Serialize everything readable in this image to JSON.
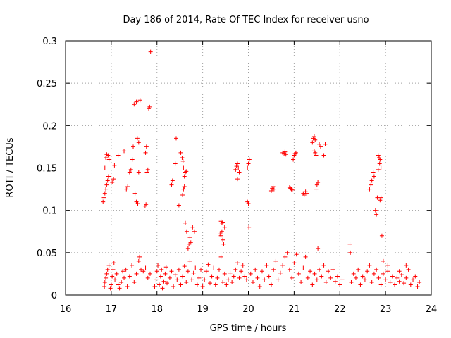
{
  "chart_data": {
    "type": "scatter",
    "title": "Day 186 of 2014, Rate Of TEC Index for receiver usno",
    "xlabel": "GPS time / hours",
    "ylabel": "ROTI / TECUs",
    "xlim": [
      16,
      24
    ],
    "ylim": [
      0,
      0.3
    ],
    "xticks": [
      "16",
      "17",
      "18",
      "19",
      "20",
      "21",
      "22",
      "23",
      "24"
    ],
    "yticks": [
      "0",
      "0.05",
      "0.1",
      "0.15",
      "0.2",
      "0.25",
      "0.3"
    ],
    "grid": true,
    "marker": "plus",
    "color": "#ff0000",
    "series": [
      {
        "name": "ROTI",
        "points": [
          [
            16.82,
            0.11
          ],
          [
            16.84,
            0.115
          ],
          [
            16.86,
            0.12
          ],
          [
            16.88,
            0.125
          ],
          [
            16.9,
            0.13
          ],
          [
            16.92,
            0.135
          ],
          [
            16.94,
            0.14
          ],
          [
            16.86,
            0.15
          ],
          [
            16.88,
            0.162
          ],
          [
            16.9,
            0.166
          ],
          [
            16.93,
            0.165
          ],
          [
            16.95,
            0.16
          ],
          [
            17.02,
            0.133
          ],
          [
            17.05,
            0.137
          ],
          [
            17.07,
            0.153
          ],
          [
            17.15,
            0.165
          ],
          [
            17.28,
            0.17
          ],
          [
            17.33,
            0.125
          ],
          [
            17.36,
            0.128
          ],
          [
            17.4,
            0.145
          ],
          [
            17.43,
            0.148
          ],
          [
            17.46,
            0.16
          ],
          [
            17.48,
            0.175
          ],
          [
            17.5,
            0.225
          ],
          [
            17.55,
            0.228
          ],
          [
            17.57,
            0.185
          ],
          [
            17.6,
            0.18
          ],
          [
            17.63,
            0.23
          ],
          [
            17.52,
            0.12
          ],
          [
            17.55,
            0.11
          ],
          [
            17.58,
            0.108
          ],
          [
            17.6,
            0.145
          ],
          [
            17.75,
            0.168
          ],
          [
            17.77,
            0.175
          ],
          [
            17.78,
            0.145
          ],
          [
            17.8,
            0.148
          ],
          [
            17.82,
            0.22
          ],
          [
            17.84,
            0.222
          ],
          [
            17.86,
            0.287
          ],
          [
            17.74,
            0.105
          ],
          [
            17.76,
            0.107
          ],
          [
            18.32,
            0.13
          ],
          [
            18.34,
            0.135
          ],
          [
            18.4,
            0.155
          ],
          [
            18.42,
            0.185
          ],
          [
            18.48,
            0.106
          ],
          [
            18.52,
            0.168
          ],
          [
            18.55,
            0.162
          ],
          [
            18.57,
            0.158
          ],
          [
            18.58,
            0.15
          ],
          [
            18.6,
            0.14
          ],
          [
            18.62,
            0.145
          ],
          [
            18.64,
            0.146
          ],
          [
            18.56,
            0.118
          ],
          [
            18.58,
            0.125
          ],
          [
            18.62,
            0.085
          ],
          [
            18.65,
            0.075
          ],
          [
            18.68,
            0.055
          ],
          [
            18.7,
            0.06
          ],
          [
            18.72,
            0.068
          ],
          [
            18.74,
            0.062
          ],
          [
            18.78,
            0.08
          ],
          [
            18.82,
            0.075
          ],
          [
            18.6,
            0.128
          ],
          [
            19.4,
            0.087
          ],
          [
            19.42,
            0.085
          ],
          [
            19.44,
            0.086
          ],
          [
            19.38,
            0.072
          ],
          [
            19.4,
            0.07
          ],
          [
            19.42,
            0.075
          ],
          [
            19.44,
            0.065
          ],
          [
            19.46,
            0.06
          ],
          [
            19.48,
            0.08
          ],
          [
            19.72,
            0.148
          ],
          [
            19.74,
            0.152
          ],
          [
            19.76,
            0.155
          ],
          [
            19.78,
            0.15
          ],
          [
            19.8,
            0.145
          ],
          [
            19.76,
            0.137
          ],
          [
            19.98,
            0.15
          ],
          [
            20.0,
            0.155
          ],
          [
            20.02,
            0.16
          ],
          [
            19.98,
            0.11
          ],
          [
            20.0,
            0.108
          ],
          [
            20.01,
            0.08
          ],
          [
            20.5,
            0.123
          ],
          [
            20.52,
            0.126
          ],
          [
            20.54,
            0.128
          ],
          [
            20.56,
            0.125
          ],
          [
            20.75,
            0.168
          ],
          [
            20.78,
            0.167
          ],
          [
            20.8,
            0.169
          ],
          [
            20.82,
            0.166
          ],
          [
            20.9,
            0.127
          ],
          [
            20.92,
            0.126
          ],
          [
            20.94,
            0.125
          ],
          [
            20.96,
            0.124
          ],
          [
            20.98,
            0.16
          ],
          [
            21.0,
            0.165
          ],
          [
            21.02,
            0.167
          ],
          [
            21.04,
            0.168
          ],
          [
            21.2,
            0.12
          ],
          [
            21.22,
            0.118
          ],
          [
            21.25,
            0.122
          ],
          [
            21.28,
            0.12
          ],
          [
            21.4,
            0.18
          ],
          [
            21.42,
            0.185
          ],
          [
            21.44,
            0.187
          ],
          [
            21.46,
            0.183
          ],
          [
            21.44,
            0.17
          ],
          [
            21.46,
            0.168
          ],
          [
            21.48,
            0.165
          ],
          [
            21.48,
            0.125
          ],
          [
            21.5,
            0.13
          ],
          [
            21.52,
            0.133
          ],
          [
            21.55,
            0.178
          ],
          [
            21.58,
            0.175
          ],
          [
            21.65,
            0.165
          ],
          [
            21.68,
            0.178
          ],
          [
            21.52,
            0.055
          ],
          [
            22.65,
            0.125
          ],
          [
            22.68,
            0.13
          ],
          [
            22.7,
            0.135
          ],
          [
            22.73,
            0.145
          ],
          [
            22.75,
            0.14
          ],
          [
            22.78,
            0.1
          ],
          [
            22.8,
            0.095
          ],
          [
            22.82,
            0.115
          ],
          [
            22.84,
            0.165
          ],
          [
            22.86,
            0.162
          ],
          [
            22.88,
            0.16
          ],
          [
            22.87,
            0.155
          ],
          [
            22.9,
            0.15
          ],
          [
            22.84,
            0.148
          ],
          [
            22.88,
            0.112
          ],
          [
            22.9,
            0.115
          ],
          [
            22.92,
            0.07
          ],
          [
            22.22,
            0.06
          ],
          [
            22.23,
            0.05
          ],
          [
            22.95,
            0.04
          ],
          [
            23.05,
            0.035
          ],
          [
            23.3,
            0.028
          ],
          [
            23.45,
            0.035
          ],
          [
            16.85,
            0.01
          ],
          [
            16.86,
            0.015
          ],
          [
            16.88,
            0.02
          ],
          [
            16.9,
            0.025
          ],
          [
            16.92,
            0.03
          ],
          [
            16.95,
            0.035
          ],
          [
            16.98,
            0.008
          ],
          [
            17.0,
            0.012
          ],
          [
            17.02,
            0.022
          ],
          [
            17.04,
            0.03
          ],
          [
            17.06,
            0.038
          ],
          [
            17.08,
            0.018
          ],
          [
            17.12,
            0.025
          ],
          [
            17.15,
            0.012
          ],
          [
            17.18,
            0.008
          ],
          [
            17.22,
            0.015
          ],
          [
            17.25,
            0.028
          ],
          [
            17.28,
            0.02
          ],
          [
            17.32,
            0.03
          ],
          [
            17.35,
            0.01
          ],
          [
            17.4,
            0.022
          ],
          [
            17.45,
            0.035
          ],
          [
            17.5,
            0.015
          ],
          [
            17.55,
            0.025
          ],
          [
            17.6,
            0.04
          ],
          [
            17.62,
            0.045
          ],
          [
            17.65,
            0.03
          ],
          [
            17.7,
            0.028
          ],
          [
            17.75,
            0.032
          ],
          [
            17.8,
            0.02
          ],
          [
            17.85,
            0.025
          ],
          [
            17.95,
            0.01
          ],
          [
            17.98,
            0.018
          ],
          [
            18.0,
            0.028
          ],
          [
            18.02,
            0.035
          ],
          [
            18.05,
            0.012
          ],
          [
            18.08,
            0.022
          ],
          [
            18.1,
            0.03
          ],
          [
            18.12,
            0.008
          ],
          [
            18.15,
            0.016
          ],
          [
            18.18,
            0.025
          ],
          [
            18.2,
            0.033
          ],
          [
            18.22,
            0.014
          ],
          [
            18.28,
            0.02
          ],
          [
            18.32,
            0.028
          ],
          [
            18.36,
            0.01
          ],
          [
            18.4,
            0.024
          ],
          [
            18.44,
            0.018
          ],
          [
            18.48,
            0.03
          ],
          [
            18.52,
            0.012
          ],
          [
            18.56,
            0.022
          ],
          [
            18.6,
            0.034
          ],
          [
            18.64,
            0.015
          ],
          [
            18.68,
            0.028
          ],
          [
            18.72,
            0.04
          ],
          [
            18.76,
            0.018
          ],
          [
            18.8,
            0.026
          ],
          [
            18.84,
            0.032
          ],
          [
            18.88,
            0.012
          ],
          [
            18.92,
            0.02
          ],
          [
            18.96,
            0.03
          ],
          [
            19.0,
            0.01
          ],
          [
            19.04,
            0.018
          ],
          [
            19.08,
            0.028
          ],
          [
            19.12,
            0.036
          ],
          [
            19.16,
            0.014
          ],
          [
            19.2,
            0.022
          ],
          [
            19.24,
            0.032
          ],
          [
            19.28,
            0.012
          ],
          [
            19.32,
            0.02
          ],
          [
            19.36,
            0.03
          ],
          [
            19.4,
            0.045
          ],
          [
            19.44,
            0.015
          ],
          [
            19.48,
            0.025
          ],
          [
            19.52,
            0.012
          ],
          [
            19.56,
            0.018
          ],
          [
            19.6,
            0.026
          ],
          [
            19.64,
            0.015
          ],
          [
            19.68,
            0.022
          ],
          [
            19.72,
            0.03
          ],
          [
            19.76,
            0.038
          ],
          [
            19.8,
            0.02
          ],
          [
            19.84,
            0.028
          ],
          [
            19.88,
            0.035
          ],
          [
            19.92,
            0.022
          ],
          [
            19.96,
            0.018
          ],
          [
            20.05,
            0.025
          ],
          [
            20.1,
            0.015
          ],
          [
            20.15,
            0.03
          ],
          [
            20.2,
            0.02
          ],
          [
            20.25,
            0.01
          ],
          [
            20.3,
            0.028
          ],
          [
            20.35,
            0.018
          ],
          [
            20.4,
            0.035
          ],
          [
            20.45,
            0.022
          ],
          [
            20.5,
            0.012
          ],
          [
            20.55,
            0.03
          ],
          [
            20.6,
            0.04
          ],
          [
            20.65,
            0.018
          ],
          [
            20.7,
            0.026
          ],
          [
            20.75,
            0.035
          ],
          [
            20.8,
            0.045
          ],
          [
            20.85,
            0.05
          ],
          [
            20.9,
            0.03
          ],
          [
            20.95,
            0.02
          ],
          [
            21.0,
            0.038
          ],
          [
            21.05,
            0.048
          ],
          [
            21.1,
            0.025
          ],
          [
            21.15,
            0.015
          ],
          [
            21.2,
            0.032
          ],
          [
            21.25,
            0.045
          ],
          [
            21.3,
            0.02
          ],
          [
            21.35,
            0.028
          ],
          [
            21.4,
            0.012
          ],
          [
            21.45,
            0.025
          ],
          [
            21.5,
            0.018
          ],
          [
            21.55,
            0.03
          ],
          [
            21.6,
            0.022
          ],
          [
            21.65,
            0.035
          ],
          [
            21.7,
            0.015
          ],
          [
            21.75,
            0.028
          ],
          [
            21.8,
            0.02
          ],
          [
            21.85,
            0.03
          ],
          [
            21.9,
            0.016
          ],
          [
            21.95,
            0.022
          ],
          [
            22.0,
            0.012
          ],
          [
            22.05,
            0.018
          ],
          [
            22.25,
            0.015
          ],
          [
            22.3,
            0.025
          ],
          [
            22.35,
            0.02
          ],
          [
            22.4,
            0.03
          ],
          [
            22.45,
            0.012
          ],
          [
            22.5,
            0.022
          ],
          [
            22.55,
            0.018
          ],
          [
            22.6,
            0.028
          ],
          [
            22.65,
            0.035
          ],
          [
            22.7,
            0.015
          ],
          [
            22.75,
            0.025
          ],
          [
            22.8,
            0.03
          ],
          [
            22.85,
            0.02
          ],
          [
            22.9,
            0.012
          ],
          [
            22.95,
            0.025
          ],
          [
            23.0,
            0.018
          ],
          [
            23.05,
            0.028
          ],
          [
            23.1,
            0.015
          ],
          [
            23.15,
            0.022
          ],
          [
            23.2,
            0.012
          ],
          [
            23.25,
            0.02
          ],
          [
            23.3,
            0.016
          ],
          [
            23.35,
            0.024
          ],
          [
            23.4,
            0.014
          ],
          [
            23.45,
            0.02
          ],
          [
            23.5,
            0.03
          ],
          [
            23.55,
            0.012
          ],
          [
            23.6,
            0.018
          ],
          [
            23.65,
            0.022
          ],
          [
            23.7,
            0.01
          ],
          [
            23.74,
            0.015
          ]
        ]
      }
    ]
  }
}
